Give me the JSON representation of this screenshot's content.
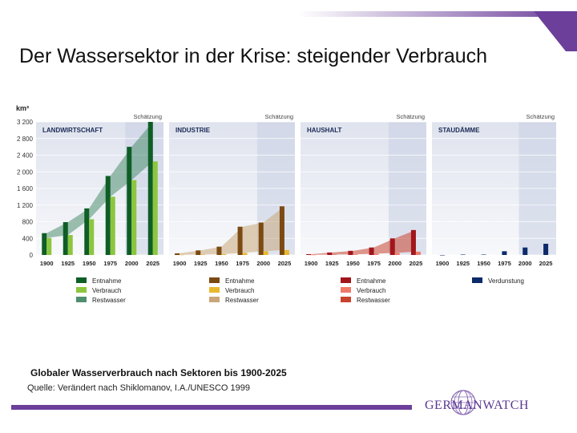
{
  "title": "Der Wassersektor in der Krise: steigender Verbrauch",
  "caption": "Globaler Wasserverbrauch nach Sektoren bis 1900-2025",
  "source": "Quelle: Verändert nach Shiklomanov, I.A./UNESCO 1999",
  "logo_text": "GERMANWATCH",
  "colors": {
    "accent": "#6b3f9a"
  },
  "chart_data": {
    "type": "bar",
    "ylabel": "km³",
    "ylim": [
      0,
      3200
    ],
    "yticks": [
      0,
      400,
      800,
      1200,
      1600,
      2000,
      2400,
      2800,
      3200
    ],
    "ytick_labels": [
      "0",
      "400",
      "800",
      "1 200",
      "1 600",
      "2 000",
      "2 400",
      "2 800",
      "3 200"
    ],
    "categories": [
      "1900",
      "1925",
      "1950",
      "1975",
      "2000",
      "2025"
    ],
    "estimate_label": "Schätzung",
    "grid": true,
    "panels": [
      {
        "name": "LANDWIRTSCHAFT",
        "colors": [
          "#0e5e26",
          "#8cc63f",
          "#4f8f6f"
        ],
        "legend": [
          "Entnahme",
          "Verbrauch",
          "Restwasser"
        ],
        "series": [
          {
            "name": "Entnahme",
            "values": [
              525,
              790,
              1120,
              1900,
              2600,
              3200
            ]
          },
          {
            "name": "Verbrauch",
            "values": [
              410,
              480,
              860,
              1400,
              1800,
              2250
            ]
          }
        ]
      },
      {
        "name": "INDUSTRIE",
        "colors": [
          "#7b4a12",
          "#e8b92f",
          "#c9a77a"
        ],
        "legend": [
          "Entnahme",
          "Verbrauch",
          "Restwasser"
        ],
        "series": [
          {
            "name": "Entnahme",
            "values": [
              40,
              110,
              200,
              680,
              780,
              1170
            ]
          },
          {
            "name": "Verbrauch",
            "values": [
              5,
              10,
              20,
              50,
              90,
              120
            ]
          }
        ]
      },
      {
        "name": "HAUSHALT",
        "colors": [
          "#a1161b",
          "#f07a6a",
          "#c8432e"
        ],
        "legend": [
          "Entnahme",
          "Verbrauch",
          "Restwasser"
        ],
        "series": [
          {
            "name": "Entnahme",
            "values": [
              20,
              60,
              100,
              180,
              400,
              600
            ]
          },
          {
            "name": "Verbrauch",
            "values": [
              5,
              10,
              15,
              30,
              50,
              80
            ]
          }
        ]
      },
      {
        "name": "STAUDÄMME",
        "colors": [
          "#0d2a6b"
        ],
        "legend": [
          "Verdunstung"
        ],
        "series": [
          {
            "name": "Verdunstung",
            "values": [
              0,
              10,
              10,
              90,
              180,
              270
            ]
          }
        ]
      }
    ]
  }
}
